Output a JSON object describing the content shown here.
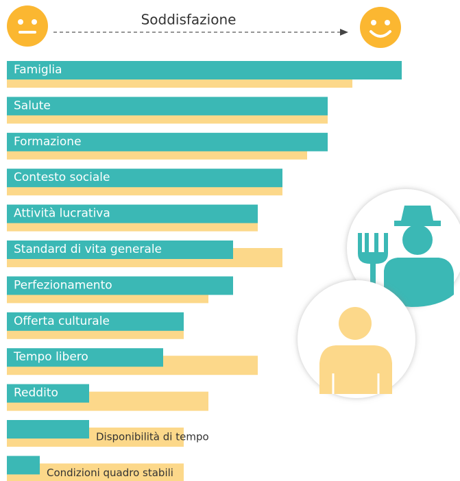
{
  "chart_data": {
    "type": "bar",
    "title": "Soddisfazione",
    "categories": [
      "Famiglia",
      "Salute",
      "Formazione",
      "Contesto sociale",
      "Attività lucrativa",
      "Standard di vita generale",
      "Perfezionamento",
      "Offerta culturale",
      "Tempo libero",
      "Reddito",
      "Disponibilità di tempo",
      "Condizioni quadro stabili"
    ],
    "series": [
      {
        "color": "#3bb8b5",
        "values": [
          96,
          78,
          78,
          67,
          61,
          55,
          55,
          43,
          38,
          20,
          20,
          8
        ]
      },
      {
        "color": "#fcd88a",
        "values": [
          84,
          78,
          73,
          67,
          61,
          67,
          49,
          43,
          61,
          49,
          43,
          43
        ]
      }
    ],
    "xlim": [
      0,
      100
    ]
  }
}
